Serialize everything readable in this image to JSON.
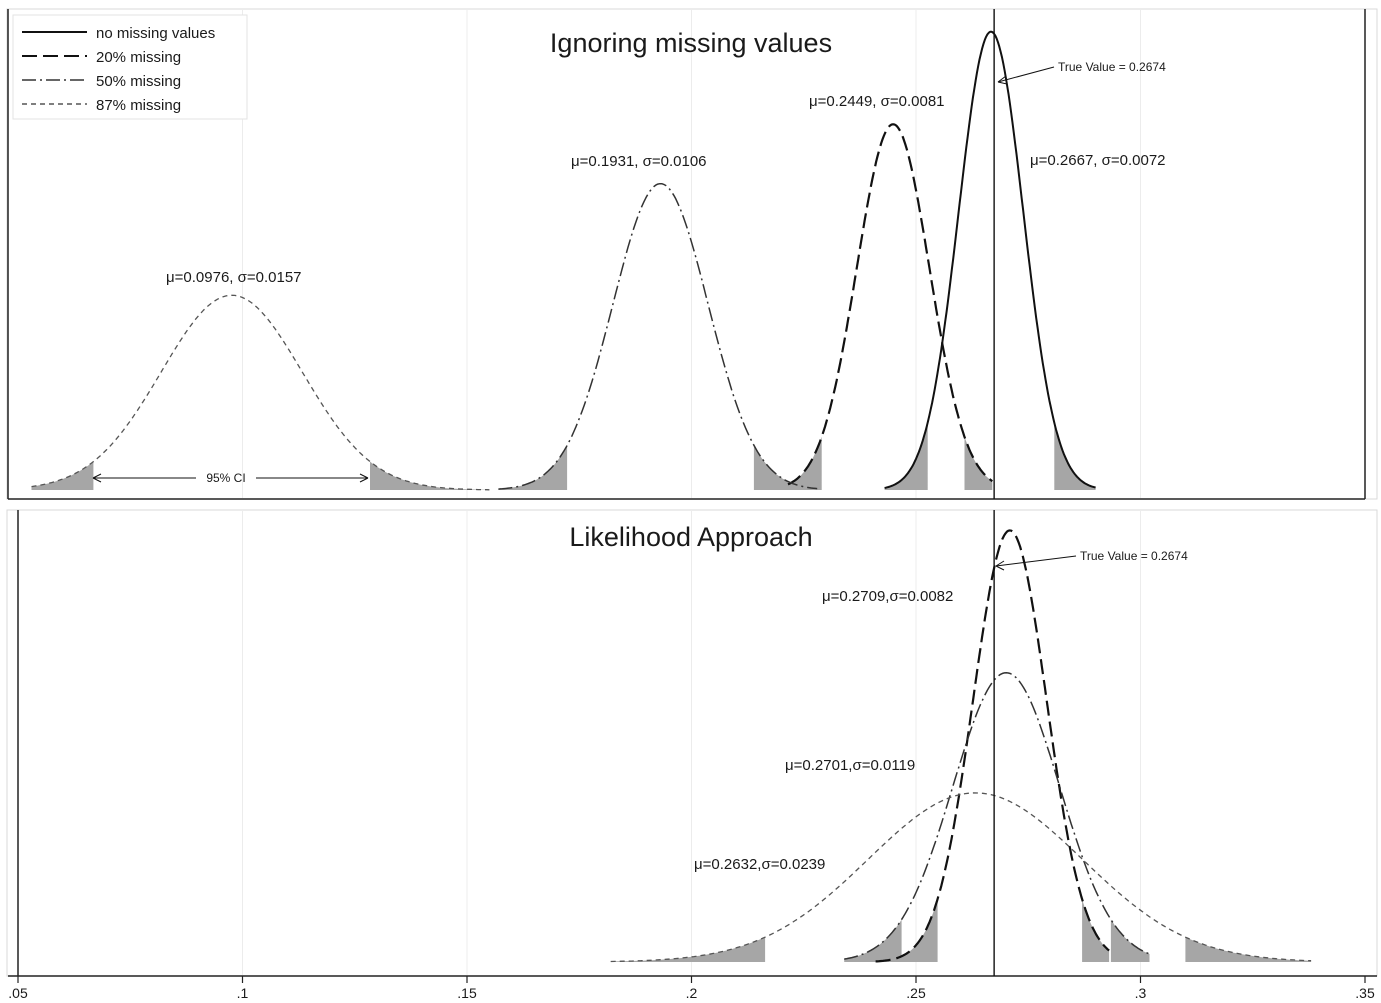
{
  "chart_data": [
    {
      "type": "line",
      "panel": "top",
      "title": "Ignoring missing values",
      "legend": {
        "placement": "top-left",
        "entries": [
          {
            "label": "no missing values",
            "style": "solid"
          },
          {
            "label": "20% missing",
            "style": "long-dash"
          },
          {
            "label": "50% missing",
            "style": "dash-dot"
          },
          {
            "label": "87% missing",
            "style": "short-dash"
          }
        ]
      },
      "true_value_label": "True Value = 0.2674",
      "true_value": 0.2674,
      "ci_label": "95% CI",
      "series": [
        {
          "name": "no missing values",
          "mu": 0.2667,
          "sigma": 0.0072,
          "label": "μ=0.2667, σ=0.0072",
          "ci": [
            0.2526,
            0.2808
          ],
          "range": [
            0.243,
            0.29
          ],
          "peak": 0.965
        },
        {
          "name": "20% missing",
          "mu": 0.2449,
          "sigma": 0.0081,
          "label": "μ=0.2449, σ=0.0081",
          "ci": [
            0.229,
            0.2608
          ],
          "range": [
            0.2215,
            0.267
          ],
          "peak": 0.77
        },
        {
          "name": "50% missing",
          "mu": 0.1931,
          "sigma": 0.0106,
          "label": "μ=0.1931, σ=0.0106",
          "ci": [
            0.1723,
            0.2139
          ],
          "range": [
            0.157,
            0.228
          ],
          "peak": 0.645
        },
        {
          "name": "87% missing",
          "mu": 0.0976,
          "sigma": 0.0157,
          "label": "μ=0.0976, σ=0.0157",
          "ci": [
            0.0668,
            0.1284
          ],
          "range": [
            0.053,
            0.155
          ],
          "peak": 0.41
        }
      ]
    },
    {
      "type": "line",
      "panel": "bottom",
      "title": "Likelihood Approach",
      "true_value_label": "True Value = 0.2674",
      "true_value": 0.2674,
      "series": [
        {
          "name": "20% missing",
          "mu": 0.2709,
          "sigma": 0.0082,
          "label": "μ=0.2709,σ=0.0082",
          "ci": [
            0.2548,
            0.287
          ],
          "range": [
            0.241,
            0.293
          ],
          "peak": 0.97
        },
        {
          "name": "50% missing",
          "mu": 0.2701,
          "sigma": 0.0119,
          "label": "μ=0.2701,σ=0.0119",
          "ci": [
            0.2468,
            0.2934
          ],
          "range": [
            0.234,
            0.302
          ],
          "peak": 0.65
        },
        {
          "name": "87% missing",
          "mu": 0.2632,
          "sigma": 0.0239,
          "label": "μ=0.2632,σ=0.0239",
          "ci": [
            0.2164,
            0.31
          ],
          "range": [
            0.182,
            0.338
          ],
          "peak": 0.38
        }
      ]
    }
  ],
  "x_axis": {
    "range": [
      0.05,
      0.35
    ],
    "ticks": [
      0.05,
      0.1,
      0.15,
      0.2,
      0.25,
      0.3,
      0.35
    ],
    "tick_labels": [
      ".05",
      ".1",
      ".15",
      ".2",
      ".25",
      ".3",
      ".35"
    ],
    "grid": true
  }
}
